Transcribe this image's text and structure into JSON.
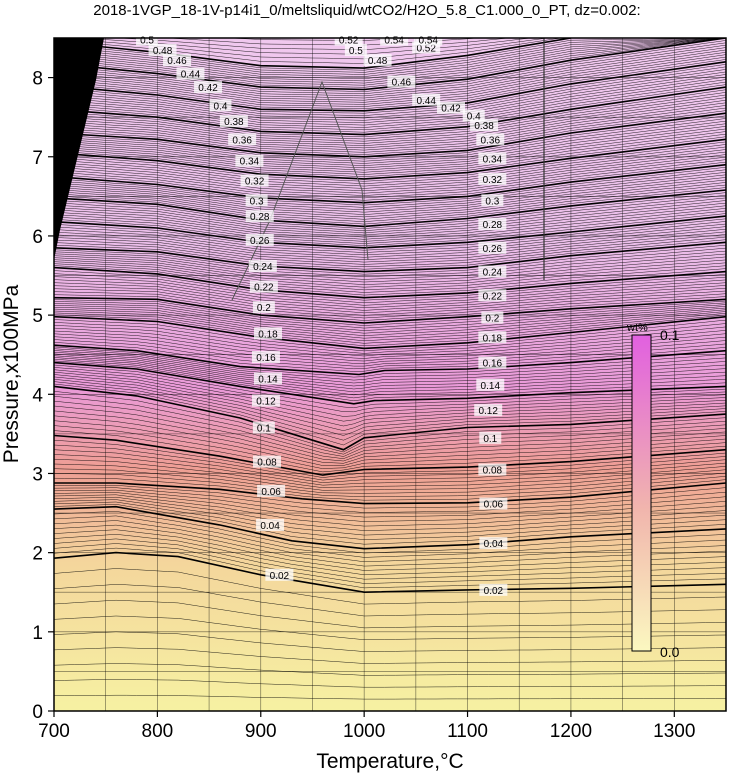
{
  "chart_data": {
    "type": "contour",
    "title": "2018-1VGP_18-1V-p14i1_0/meltsliquid/wtCO2/H2O_5.8_C1.000_0_PT, dz=0.002:",
    "xlabel": "Temperature,°C",
    "ylabel": "Pressure,x100MPa",
    "xlim": [
      700,
      1350
    ],
    "ylim": [
      0,
      8.5
    ],
    "x_ticks": [
      700,
      800,
      900,
      1000,
      1100,
      1200,
      1300
    ],
    "y_ticks": [
      0,
      1,
      2,
      3,
      4,
      5,
      6,
      7,
      8
    ],
    "grid": true,
    "contour_interval": 0.002,
    "major_contour_interval": 0.02,
    "colorbar": {
      "unit": "wt%",
      "min_label": "0.0",
      "max_label": "0.1",
      "position": "right",
      "colors": [
        "#f5f0a0",
        "#ee8e8e",
        "#e87ee8"
      ]
    },
    "major_contours": [
      {
        "value": 0.02,
        "label": "0.02",
        "points": [
          [
            700,
            1.93
          ],
          [
            760,
            2.0
          ],
          [
            820,
            1.95
          ],
          [
            900,
            1.72
          ],
          [
            1000,
            1.5
          ],
          [
            1100,
            1.53
          ],
          [
            1200,
            1.55
          ],
          [
            1350,
            1.6
          ]
        ]
      },
      {
        "value": 0.04,
        "label": "0.04",
        "points": [
          [
            700,
            2.55
          ],
          [
            760,
            2.58
          ],
          [
            860,
            2.35
          ],
          [
            930,
            2.15
          ],
          [
            1000,
            2.05
          ],
          [
            1100,
            2.1
          ],
          [
            1200,
            2.2
          ],
          [
            1350,
            2.3
          ]
        ]
      },
      {
        "value": 0.06,
        "label": "0.06",
        "points": [
          [
            700,
            2.88
          ],
          [
            760,
            2.88
          ],
          [
            860,
            2.8
          ],
          [
            940,
            2.68
          ],
          [
            1000,
            2.62
          ],
          [
            1100,
            2.63
          ],
          [
            1200,
            2.7
          ],
          [
            1350,
            2.88
          ]
        ]
      },
      {
        "value": 0.08,
        "label": "0.08",
        "points": [
          [
            700,
            3.48
          ],
          [
            760,
            3.42
          ],
          [
            860,
            3.22
          ],
          [
            960,
            2.98
          ],
          [
            1000,
            3.05
          ],
          [
            1100,
            3.08
          ],
          [
            1200,
            3.15
          ],
          [
            1350,
            3.3
          ]
        ]
      },
      {
        "value": 0.1,
        "label": "0.1",
        "points": [
          [
            700,
            4.1
          ],
          [
            780,
            3.98
          ],
          [
            880,
            3.7
          ],
          [
            980,
            3.3
          ],
          [
            1000,
            3.45
          ],
          [
            1100,
            3.58
          ],
          [
            1200,
            3.62
          ],
          [
            1350,
            3.75
          ]
        ]
      },
      {
        "value": 0.12,
        "label": "0.12",
        "points": [
          [
            700,
            4.4
          ],
          [
            780,
            4.32
          ],
          [
            880,
            4.1
          ],
          [
            990,
            3.88
          ],
          [
            1010,
            3.92
          ],
          [
            1100,
            3.95
          ],
          [
            1200,
            4.02
          ],
          [
            1350,
            4.1
          ]
        ]
      },
      {
        "value": 0.14,
        "label": "0.14",
        "points": [
          [
            700,
            4.62
          ],
          [
            780,
            4.55
          ],
          [
            880,
            4.35
          ],
          [
            995,
            4.25
          ],
          [
            1020,
            4.3
          ],
          [
            1100,
            4.32
          ],
          [
            1200,
            4.4
          ],
          [
            1350,
            4.55
          ]
        ]
      },
      {
        "value": 0.16,
        "label": "0.16",
        "points": [
          [
            700,
            4.98
          ],
          [
            800,
            4.92
          ],
          [
            900,
            4.72
          ],
          [
            1000,
            4.58
          ],
          [
            1100,
            4.65
          ],
          [
            1200,
            4.78
          ],
          [
            1350,
            4.98
          ]
        ]
      },
      {
        "value": 0.18,
        "label": "0.18",
        "points": [
          [
            700,
            5.22
          ],
          [
            800,
            5.2
          ],
          [
            900,
            5.0
          ],
          [
            1000,
            4.9
          ],
          [
            1100,
            4.98
          ],
          [
            1200,
            5.08
          ],
          [
            1350,
            5.2
          ]
        ]
      },
      {
        "value": 0.2,
        "label": "0.2",
        "points": [
          [
            700,
            5.6
          ],
          [
            800,
            5.52
          ],
          [
            900,
            5.32
          ],
          [
            1000,
            5.22
          ],
          [
            1100,
            5.28
          ],
          [
            1200,
            5.4
          ],
          [
            1350,
            5.55
          ]
        ]
      },
      {
        "value": 0.22,
        "label": "0.22",
        "points": [
          [
            700,
            5.85
          ],
          [
            800,
            5.8
          ],
          [
            900,
            5.62
          ],
          [
            1000,
            5.55
          ],
          [
            1100,
            5.6
          ],
          [
            1200,
            5.75
          ],
          [
            1350,
            5.92
          ]
        ]
      },
      {
        "value": 0.24,
        "label": "0.24",
        "points": [
          [
            700,
            6.18
          ],
          [
            800,
            6.1
          ],
          [
            900,
            5.92
          ],
          [
            1000,
            5.85
          ],
          [
            1100,
            5.92
          ],
          [
            1200,
            6.05
          ],
          [
            1350,
            6.25
          ]
        ]
      },
      {
        "value": 0.26,
        "label": "0.26",
        "points": [
          [
            700,
            6.48
          ],
          [
            800,
            6.4
          ],
          [
            900,
            6.2
          ],
          [
            1000,
            6.12
          ],
          [
            1100,
            6.22
          ],
          [
            1200,
            6.38
          ],
          [
            1350,
            6.58
          ]
        ]
      },
      {
        "value": 0.28,
        "label": "0.28",
        "points": [
          [
            700,
            6.75
          ],
          [
            800,
            6.65
          ],
          [
            900,
            6.48
          ],
          [
            1000,
            6.42
          ],
          [
            1100,
            6.5
          ],
          [
            1200,
            6.68
          ],
          [
            1350,
            6.9
          ]
        ]
      },
      {
        "value": 0.3,
        "label": "0.3",
        "points": [
          [
            700,
            7.05
          ],
          [
            800,
            6.95
          ],
          [
            900,
            6.78
          ],
          [
            1000,
            6.72
          ],
          [
            1100,
            6.8
          ],
          [
            1200,
            6.98
          ],
          [
            1350,
            7.22
          ]
        ]
      },
      {
        "value": 0.32,
        "label": "0.32",
        "points": [
          [
            700,
            7.3
          ],
          [
            800,
            7.22
          ],
          [
            900,
            7.05
          ],
          [
            1000,
            7.0
          ],
          [
            1100,
            7.08
          ],
          [
            1200,
            7.3
          ],
          [
            1350,
            7.55
          ]
        ]
      },
      {
        "value": 0.34,
        "label": "0.34",
        "points": [
          [
            700,
            7.6
          ],
          [
            800,
            7.5
          ],
          [
            900,
            7.32
          ],
          [
            1000,
            7.28
          ],
          [
            1100,
            7.38
          ],
          [
            1200,
            7.6
          ],
          [
            1350,
            7.88
          ]
        ]
      },
      {
        "value": 0.36,
        "label": "0.36",
        "points": [
          [
            700,
            7.9
          ],
          [
            800,
            7.78
          ],
          [
            900,
            7.6
          ],
          [
            1000,
            7.58
          ],
          [
            1100,
            7.68
          ],
          [
            1200,
            7.92
          ],
          [
            1350,
            8.2
          ]
        ]
      },
      {
        "value": 0.38,
        "label": "0.38",
        "points": [
          [
            700,
            8.18
          ],
          [
            800,
            8.05
          ],
          [
            900,
            7.88
          ],
          [
            1000,
            7.85
          ],
          [
            1100,
            7.98
          ],
          [
            1200,
            8.22
          ],
          [
            1350,
            8.5
          ]
        ]
      },
      {
        "value": 0.4,
        "label": "0.4",
        "points": [
          [
            700,
            8.45
          ],
          [
            800,
            8.32
          ],
          [
            900,
            8.15
          ],
          [
            1000,
            8.12
          ],
          [
            1100,
            8.28
          ],
          [
            1200,
            8.5
          ]
        ]
      }
    ],
    "contour_labels": [
      {
        "text": "0.02",
        "x": 918,
        "y": 1.72
      },
      {
        "text": "0.02",
        "x": 1125,
        "y": 1.53
      },
      {
        "text": "0.04",
        "x": 909,
        "y": 2.35
      },
      {
        "text": "0.04",
        "x": 1125,
        "y": 2.12
      },
      {
        "text": "0.06",
        "x": 910,
        "y": 2.78
      },
      {
        "text": "0.06",
        "x": 1125,
        "y": 2.62
      },
      {
        "text": "0.08",
        "x": 906,
        "y": 3.15
      },
      {
        "text": "0.08",
        "x": 1124,
        "y": 3.05
      },
      {
        "text": "0.1",
        "x": 903,
        "y": 3.58
      },
      {
        "text": "0.1",
        "x": 1122,
        "y": 3.45
      },
      {
        "text": "0.12",
        "x": 905,
        "y": 3.92
      },
      {
        "text": "0.12",
        "x": 1120,
        "y": 3.8
      },
      {
        "text": "0.14",
        "x": 907,
        "y": 4.2
      },
      {
        "text": "0.14",
        "x": 1122,
        "y": 4.12
      },
      {
        "text": "0.16",
        "x": 905,
        "y": 4.47
      },
      {
        "text": "0.16",
        "x": 1124,
        "y": 4.4
      },
      {
        "text": "0.18",
        "x": 907,
        "y": 4.77
      },
      {
        "text": "0.18",
        "x": 1124,
        "y": 4.72
      },
      {
        "text": "0.2",
        "x": 903,
        "y": 5.1
      },
      {
        "text": "0.2",
        "x": 1124,
        "y": 4.97
      },
      {
        "text": "0.22",
        "x": 903,
        "y": 5.36
      },
      {
        "text": "0.22",
        "x": 1124,
        "y": 5.25
      },
      {
        "text": "0.24",
        "x": 902,
        "y": 5.62
      },
      {
        "text": "0.24",
        "x": 1124,
        "y": 5.55
      },
      {
        "text": "0.26",
        "x": 899,
        "y": 5.95
      },
      {
        "text": "0.26",
        "x": 1124,
        "y": 5.85
      },
      {
        "text": "0.28",
        "x": 899,
        "y": 6.25
      },
      {
        "text": "0.28",
        "x": 1124,
        "y": 6.15
      },
      {
        "text": "0.3",
        "x": 896,
        "y": 6.45
      },
      {
        "text": "0.3",
        "x": 1124,
        "y": 6.45
      },
      {
        "text": "0.32",
        "x": 894,
        "y": 6.7
      },
      {
        "text": "0.32",
        "x": 1124,
        "y": 6.72
      },
      {
        "text": "0.34",
        "x": 889,
        "y": 6.95
      },
      {
        "text": "0.34",
        "x": 1124,
        "y": 6.98
      },
      {
        "text": "0.36",
        "x": 882,
        "y": 7.22
      },
      {
        "text": "0.36",
        "x": 1122,
        "y": 7.22
      },
      {
        "text": "0.38",
        "x": 874,
        "y": 7.45
      },
      {
        "text": "0.38",
        "x": 1116,
        "y": 7.4
      },
      {
        "text": "0.4",
        "x": 861,
        "y": 7.65
      },
      {
        "text": "0.4",
        "x": 1106,
        "y": 7.52
      },
      {
        "text": "0.42",
        "x": 849,
        "y": 7.88
      },
      {
        "text": "0.42",
        "x": 1084,
        "y": 7.62
      },
      {
        "text": "0.44",
        "x": 832,
        "y": 8.05
      },
      {
        "text": "0.44",
        "x": 1060,
        "y": 7.72
      },
      {
        "text": "0.46",
        "x": 819,
        "y": 8.22
      },
      {
        "text": "0.46",
        "x": 1036,
        "y": 7.95
      },
      {
        "text": "0.48",
        "x": 805,
        "y": 8.35
      },
      {
        "text": "0.48",
        "x": 1013,
        "y": 8.22
      },
      {
        "text": "0.5",
        "x": 790,
        "y": 8.48
      },
      {
        "text": "0.5",
        "x": 992,
        "y": 8.35
      },
      {
        "text": "0.52",
        "x": 985,
        "y": 8.48
      },
      {
        "text": "0.52",
        "x": 1060,
        "y": 8.38
      },
      {
        "text": "0.54",
        "x": 1029,
        "y": 8.48
      },
      {
        "text": "0.54",
        "x": 1062,
        "y": 8.48
      }
    ]
  }
}
